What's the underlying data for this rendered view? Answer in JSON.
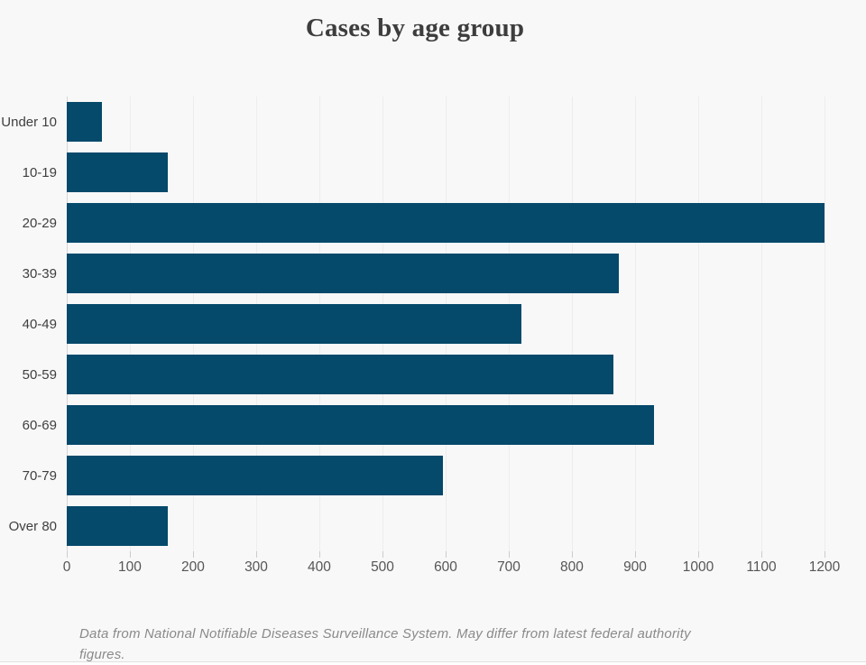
{
  "page": {
    "background": "#f8f8f8"
  },
  "chart_data": {
    "type": "bar",
    "orientation": "horizontal",
    "title": "Cases by age group",
    "categories": [
      "Under 10",
      "10-19",
      "20-29",
      "30-39",
      "40-49",
      "50-59",
      "60-69",
      "70-79",
      "Over 80"
    ],
    "values": [
      55,
      160,
      1200,
      875,
      720,
      865,
      930,
      595,
      160
    ],
    "xlabel": "",
    "ylabel": "",
    "xlim": [
      0,
      1200
    ],
    "x_ticks": [
      0,
      100,
      200,
      300,
      400,
      500,
      600,
      700,
      800,
      900,
      1000,
      1100,
      1200
    ],
    "grid": true,
    "legend": "none",
    "bar_color": "#05496b",
    "footnote": "Data from National Notifiable Diseases Surveillance System. May differ from latest federal authority figures."
  }
}
